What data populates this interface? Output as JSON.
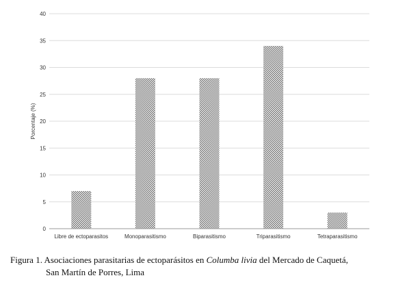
{
  "chart_data": {
    "type": "bar",
    "categories": [
      "Libre de ectoparasitos",
      "Monoparasitismo",
      "Biparasitismo",
      "Triparasitismo",
      "Tetraparasitismo"
    ],
    "values": [
      7,
      28,
      28,
      34,
      3
    ],
    "ylabel": "Porcentaje (%)",
    "ylim": [
      0,
      40
    ],
    "yticks": [
      0,
      5,
      10,
      15,
      20,
      25,
      30,
      35,
      40
    ],
    "grid": true,
    "bar_fill": "gray checkered pattern"
  },
  "caption": {
    "prefix": "Figura 1. Asociaciones parasitarias de ectoparásitos en ",
    "species": "Columba livia",
    "suffix": " del Mercado de Caquetá,",
    "line2": "San Martín de Porres, Lima"
  }
}
